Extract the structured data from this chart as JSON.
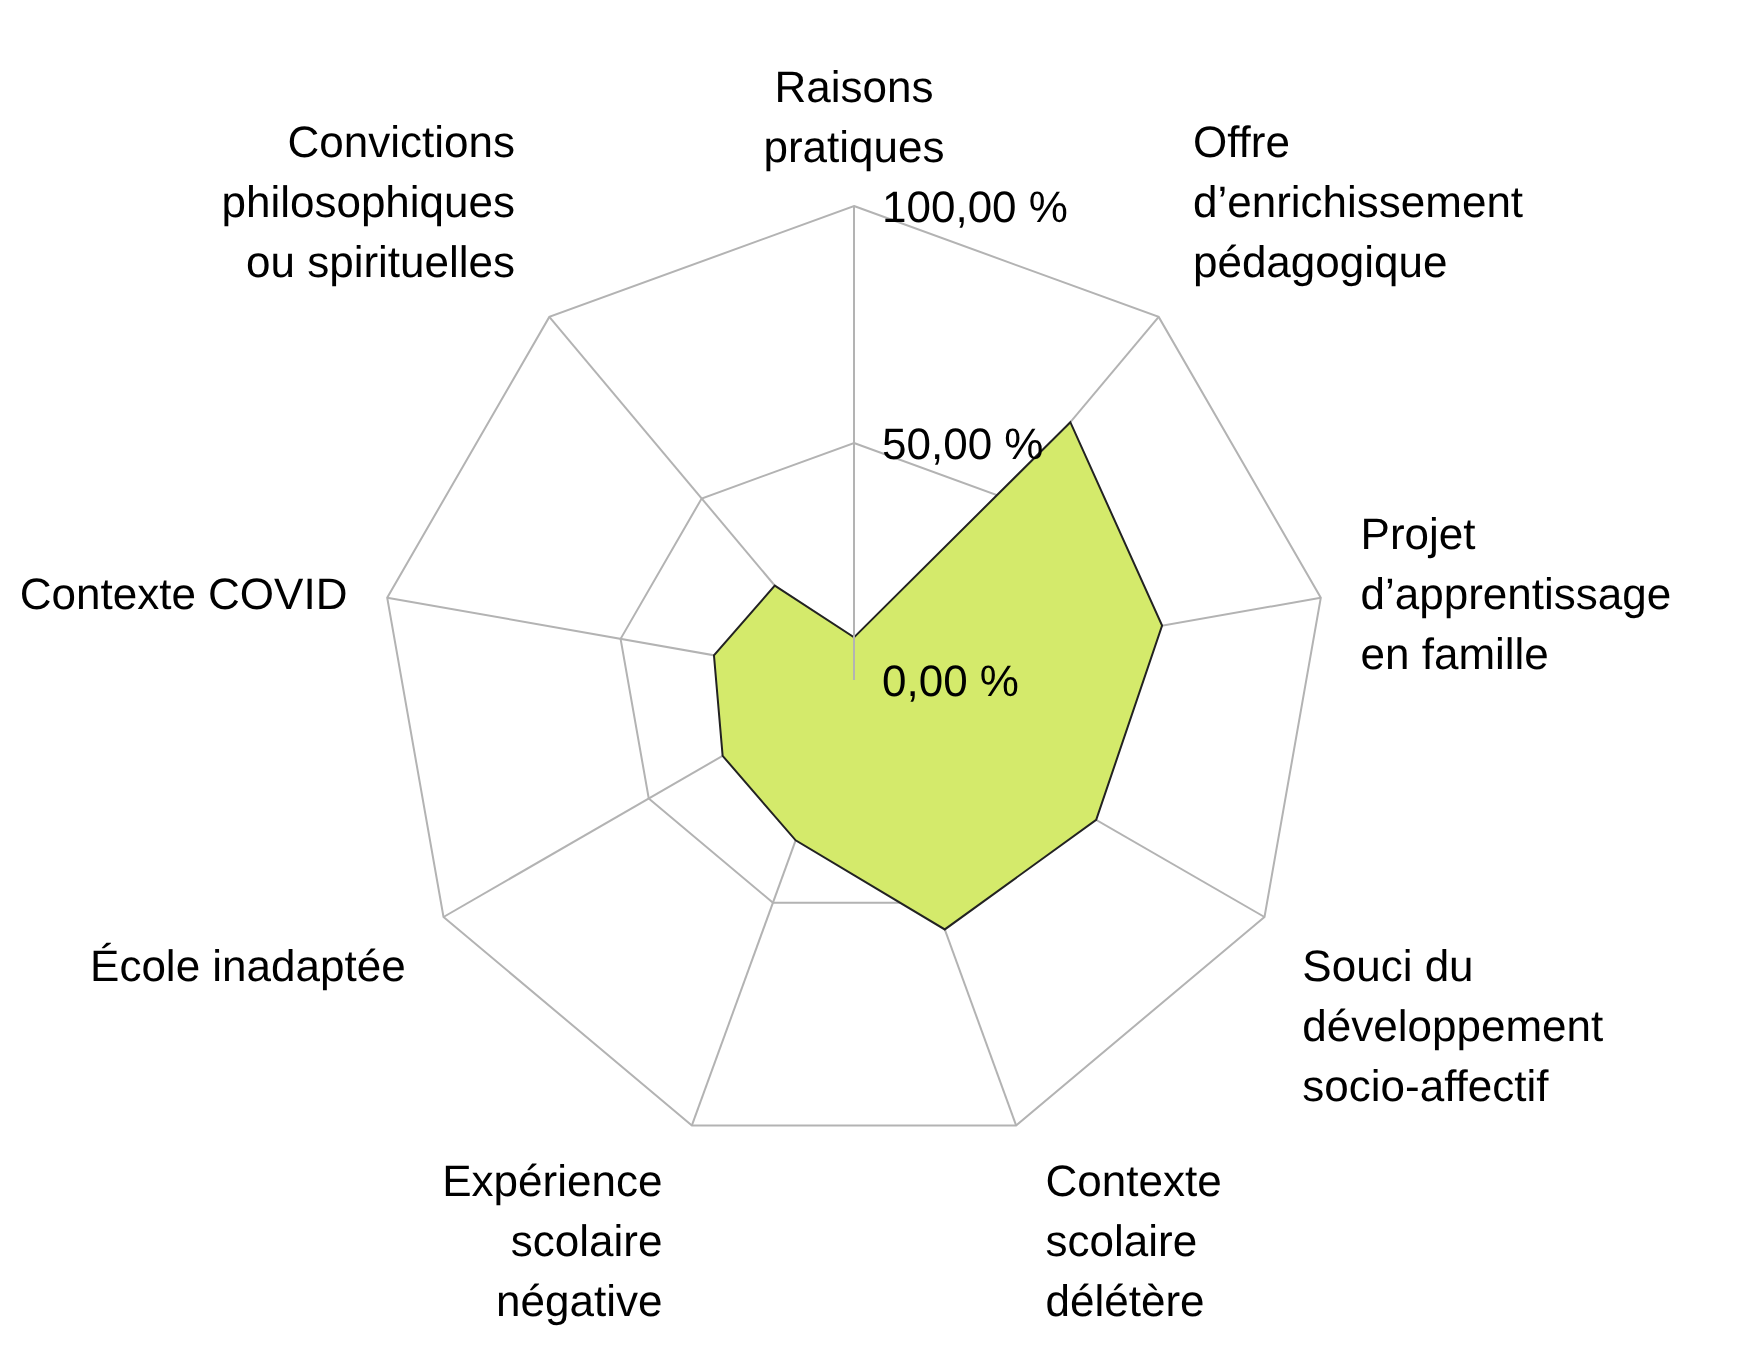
{
  "chart_data": {
    "type": "radar",
    "categories": [
      "Raisons pratiques",
      "Offre d’enrichissement pédagogique",
      "Projet d’apprentissage en famille",
      "Souci du développement socio-affectif",
      "Contexte scolaire délétère",
      "Expérience scolaire négative",
      "École inadaptée",
      "Contexte COVID",
      "Convictions philosophiques ou spirituelles"
    ],
    "series": [
      {
        "color": "#d4ea6b",
        "values": [
          9,
          71,
          66,
          59,
          56,
          36,
          32,
          30,
          26
        ]
      }
    ],
    "ylim": [
      0,
      100
    ],
    "yticks": [
      {
        "value": 0,
        "label": "0,00 %"
      },
      {
        "value": 50,
        "label": "50,00 %"
      },
      {
        "value": 100,
        "label": "100,00 %"
      }
    ],
    "grid": true
  }
}
